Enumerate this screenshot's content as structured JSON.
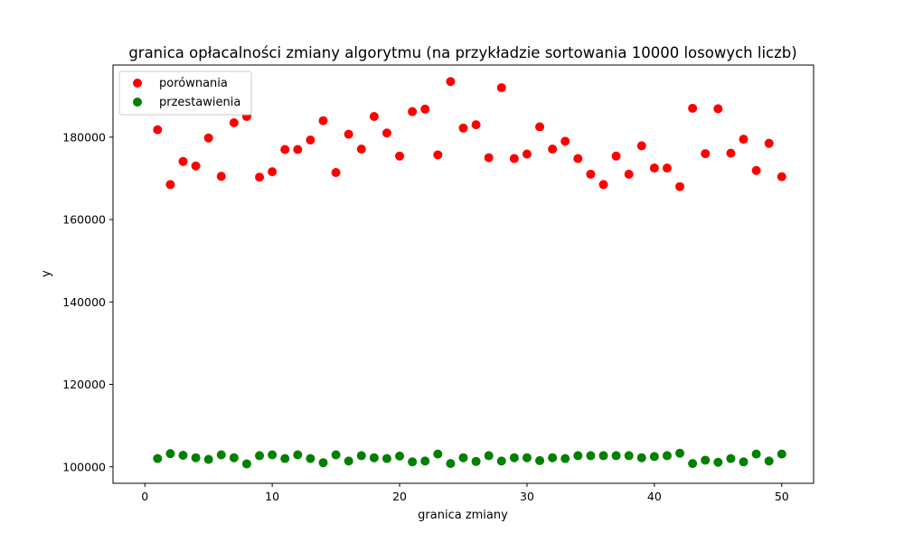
{
  "chart_data": {
    "type": "scatter",
    "title": "granica opłacalności zmiany algorytmu (na przykładzie sortowania 10000 losowych liczb)",
    "xlabel": "granica zmiany",
    "ylabel": "y",
    "xlim": [
      -2.5,
      52.5
    ],
    "ylim": [
      96000,
      197500
    ],
    "xticks": [
      0,
      10,
      20,
      30,
      40,
      50
    ],
    "xtick_labels": [
      "0",
      "10",
      "20",
      "30",
      "40",
      "50"
    ],
    "yticks": [
      100000,
      120000,
      140000,
      160000,
      180000
    ],
    "ytick_labels": [
      "100000",
      "120000",
      "140000",
      "160000",
      "180000"
    ],
    "grid": false,
    "legend_position": "top-left",
    "x": [
      1,
      2,
      3,
      4,
      5,
      6,
      7,
      8,
      9,
      10,
      11,
      12,
      13,
      14,
      15,
      16,
      17,
      18,
      19,
      20,
      21,
      22,
      23,
      24,
      25,
      26,
      27,
      28,
      29,
      30,
      31,
      32,
      33,
      34,
      35,
      36,
      37,
      38,
      39,
      40,
      41,
      42,
      43,
      44,
      45,
      46,
      47,
      48,
      49,
      50
    ],
    "series": [
      {
        "name": "porównania",
        "color": "#ff0000",
        "values": [
          181800,
          168500,
          174100,
          173000,
          179800,
          170500,
          183500,
          185000,
          170300,
          171600,
          177000,
          177000,
          179300,
          184000,
          171400,
          180700,
          177100,
          185000,
          181000,
          175400,
          186200,
          186800,
          175700,
          193500,
          182200,
          183000,
          175000,
          192000,
          174800,
          175900,
          182500,
          177100,
          179000,
          174800,
          171000,
          168500,
          175400,
          171000,
          177900,
          172500,
          172500,
          168000,
          187000,
          176000,
          186900,
          176100,
          179500,
          171900,
          178500,
          170400
        ]
      },
      {
        "name": "przestawienia",
        "color": "#008000",
        "values": [
          102000,
          103200,
          102800,
          102200,
          101800,
          102900,
          102200,
          100700,
          102700,
          102900,
          102000,
          102900,
          102000,
          101000,
          102900,
          101400,
          102700,
          102200,
          102000,
          102600,
          101200,
          101400,
          103100,
          100800,
          102200,
          101300,
          102700,
          101400,
          102200,
          102200,
          101500,
          102200,
          102000,
          102700,
          102700,
          102700,
          102700,
          102700,
          102200,
          102500,
          102700,
          103300,
          100800,
          101600,
          101100,
          102000,
          101200,
          103100,
          101400,
          103100
        ]
      }
    ]
  }
}
